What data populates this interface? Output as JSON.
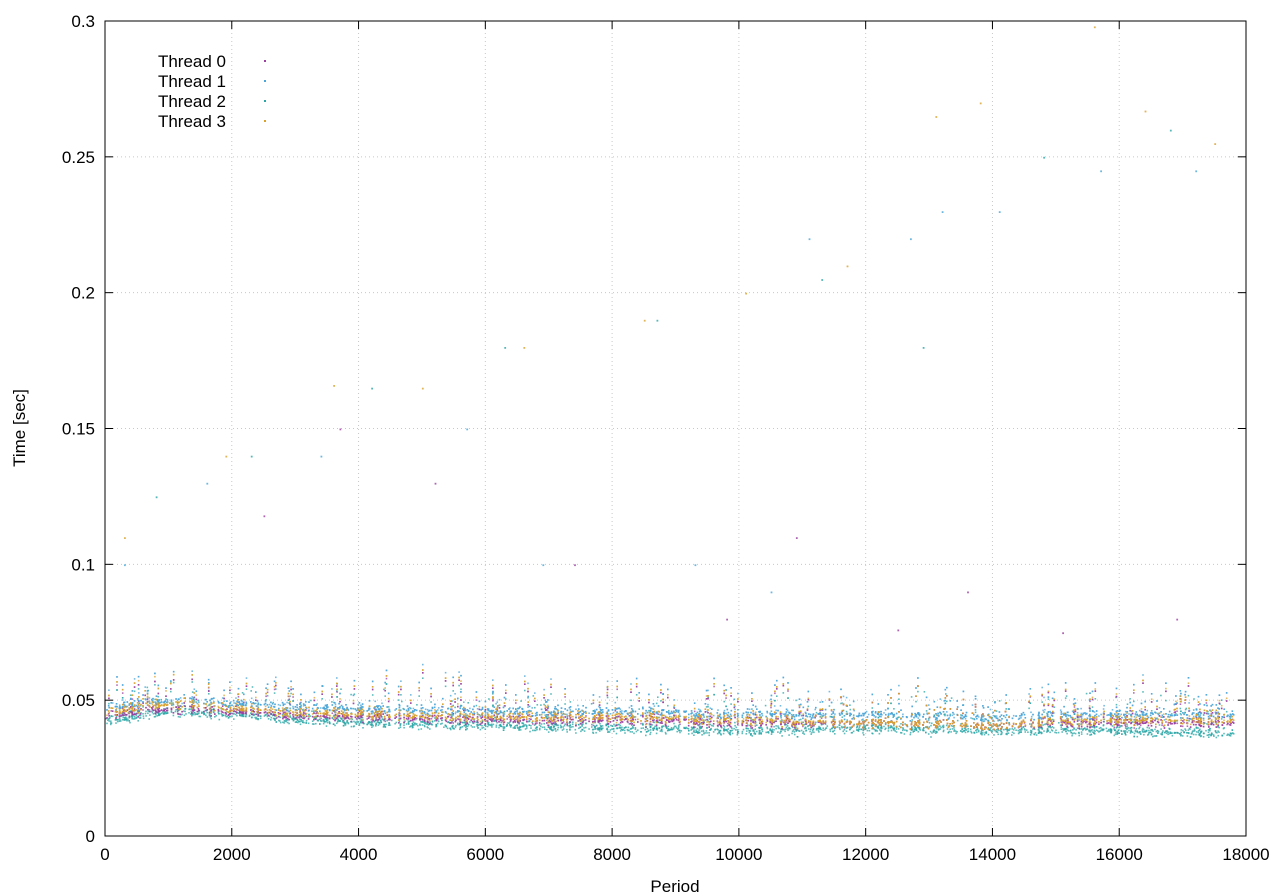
{
  "chart_data": {
    "type": "scatter",
    "xlabel": "Period",
    "ylabel": "Time [sec]",
    "xlim": [
      0,
      18000
    ],
    "ylim": [
      0,
      0.3
    ],
    "x_ticks": [
      "0",
      "2000",
      "4000",
      "6000",
      "8000",
      "10000",
      "12000",
      "14000",
      "16000",
      "18000"
    ],
    "y_ticks": [
      "0",
      "0.05",
      "0.1",
      "0.15",
      "0.2",
      "0.25",
      "0.3"
    ],
    "grid": true,
    "legend_position": "top-left",
    "x_max_data": 17800,
    "series": [
      {
        "name": "Thread 0",
        "color": "#9b3fa0",
        "baseline": [
          [
            0,
            0.045
          ],
          [
            1000,
            0.047
          ],
          [
            2000,
            0.046
          ],
          [
            4000,
            0.044
          ],
          [
            6000,
            0.043
          ],
          [
            8000,
            0.043
          ],
          [
            10000,
            0.042
          ],
          [
            12000,
            0.042
          ],
          [
            14000,
            0.041
          ],
          [
            16000,
            0.042
          ],
          [
            17800,
            0.042
          ]
        ],
        "outliers": [
          [
            2500,
            0.118
          ],
          [
            3700,
            0.15
          ],
          [
            5200,
            0.13
          ],
          [
            7400,
            0.1
          ],
          [
            9800,
            0.08
          ],
          [
            10900,
            0.11
          ],
          [
            12500,
            0.076
          ],
          [
            13600,
            0.09
          ],
          [
            15100,
            0.075
          ],
          [
            16900,
            0.08
          ]
        ]
      },
      {
        "name": "Thread 1",
        "color": "#4aa6d8",
        "baseline": [
          [
            0,
            0.048
          ],
          [
            1000,
            0.05
          ],
          [
            2000,
            0.049
          ],
          [
            4000,
            0.047
          ],
          [
            6000,
            0.046
          ],
          [
            8000,
            0.046
          ],
          [
            10000,
            0.045
          ],
          [
            12000,
            0.045
          ],
          [
            14000,
            0.044
          ],
          [
            16000,
            0.045
          ],
          [
            17800,
            0.045
          ]
        ],
        "outliers": [
          [
            300,
            0.1
          ],
          [
            1600,
            0.13
          ],
          [
            3400,
            0.14
          ],
          [
            5700,
            0.15
          ],
          [
            6900,
            0.1
          ],
          [
            9300,
            0.1
          ],
          [
            10500,
            0.09
          ],
          [
            11100,
            0.22
          ],
          [
            12700,
            0.22
          ],
          [
            13200,
            0.23
          ],
          [
            14100,
            0.23
          ],
          [
            15700,
            0.245
          ],
          [
            17200,
            0.245
          ]
        ]
      },
      {
        "name": "Thread 2",
        "color": "#2aa6a6",
        "baseline": [
          [
            0,
            0.043
          ],
          [
            1000,
            0.046
          ],
          [
            2000,
            0.045
          ],
          [
            4000,
            0.042
          ],
          [
            6000,
            0.041
          ],
          [
            8000,
            0.04
          ],
          [
            10000,
            0.039
          ],
          [
            12000,
            0.04
          ],
          [
            14000,
            0.039
          ],
          [
            16000,
            0.039
          ],
          [
            17800,
            0.038
          ]
        ],
        "outliers": [
          [
            800,
            0.125
          ],
          [
            2300,
            0.14
          ],
          [
            4200,
            0.165
          ],
          [
            6300,
            0.18
          ],
          [
            8700,
            0.19
          ],
          [
            11300,
            0.205
          ],
          [
            12900,
            0.18
          ],
          [
            14800,
            0.25
          ],
          [
            16800,
            0.26
          ]
        ]
      },
      {
        "name": "Thread 3",
        "color": "#d9a12c",
        "baseline": [
          [
            0,
            0.046
          ],
          [
            1000,
            0.049
          ],
          [
            2000,
            0.047
          ],
          [
            4000,
            0.045
          ],
          [
            6000,
            0.044
          ],
          [
            8000,
            0.044
          ],
          [
            10000,
            0.043
          ],
          [
            12000,
            0.042
          ],
          [
            14000,
            0.041
          ],
          [
            16000,
            0.043
          ],
          [
            17800,
            0.043
          ]
        ],
        "outliers": [
          [
            300,
            0.11
          ],
          [
            1900,
            0.14
          ],
          [
            3600,
            0.166
          ],
          [
            5000,
            0.165
          ],
          [
            6600,
            0.18
          ],
          [
            8500,
            0.19
          ],
          [
            10100,
            0.2
          ],
          [
            11700,
            0.21
          ],
          [
            13100,
            0.265
          ],
          [
            13800,
            0.27
          ],
          [
            15600,
            0.298
          ],
          [
            16400,
            0.267
          ],
          [
            17500,
            0.255
          ]
        ]
      }
    ]
  }
}
